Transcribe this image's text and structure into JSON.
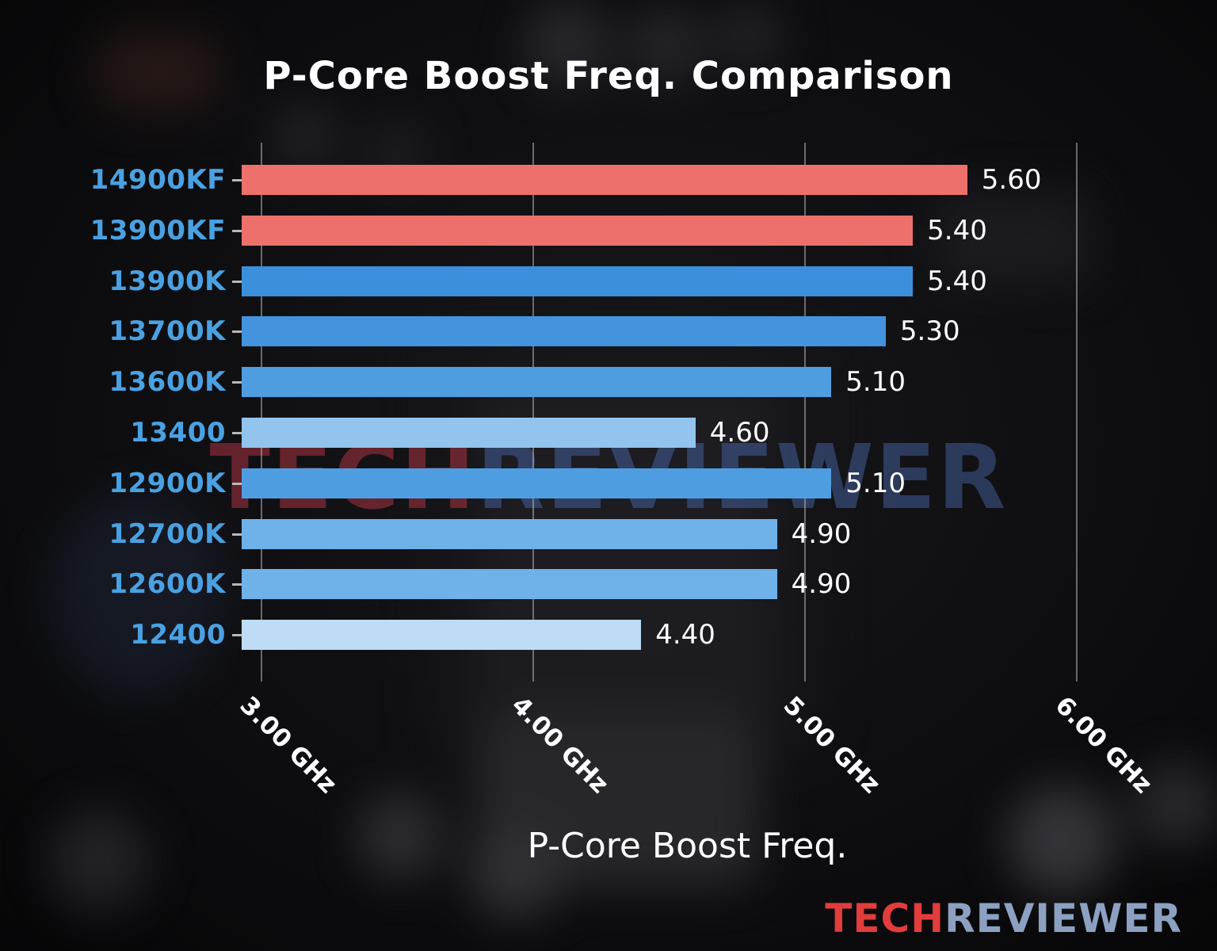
{
  "chart_data": {
    "type": "bar",
    "orientation": "horizontal",
    "title": "P-Core Boost Freq. Comparison",
    "xlabel": "P-Core Boost Freq.",
    "ylabel": "",
    "categories": [
      "14900KF",
      "13900KF",
      "13900K",
      "13700K",
      "13600K",
      "13400",
      "12900K",
      "12700K",
      "12600K",
      "12400"
    ],
    "values": [
      5.6,
      5.4,
      5.4,
      5.3,
      5.1,
      4.6,
      5.1,
      4.9,
      4.9,
      4.4
    ],
    "value_labels": [
      "5.60",
      "5.40",
      "5.40",
      "5.30",
      "5.10",
      "4.60",
      "5.10",
      "4.90",
      "4.90",
      "4.40"
    ],
    "bar_colors": [
      "#ed706b",
      "#ed706b",
      "#3c8fdb",
      "#4394dd",
      "#4f9de1",
      "#93c4ee",
      "#4f9de1",
      "#6fb1e9",
      "#6fb1e9",
      "#bedcf5"
    ],
    "category_label_color": "#4aa1e2",
    "x_ticks": [
      {
        "value": 3.0,
        "label": "3.00 GHz"
      },
      {
        "value": 4.0,
        "label": "4.00 GHz"
      },
      {
        "value": 5.0,
        "label": "5.00 GHz"
      },
      {
        "value": 6.0,
        "label": "6.00 GHz"
      }
    ],
    "xlim": [
      2.93,
      6.21
    ],
    "grid": true,
    "legend": null
  },
  "watermark": {
    "center_tech": "TECH",
    "center_reviewer": "REVIEWER",
    "footer_tech": "TECH",
    "footer_reviewer": "REVIEWER"
  }
}
